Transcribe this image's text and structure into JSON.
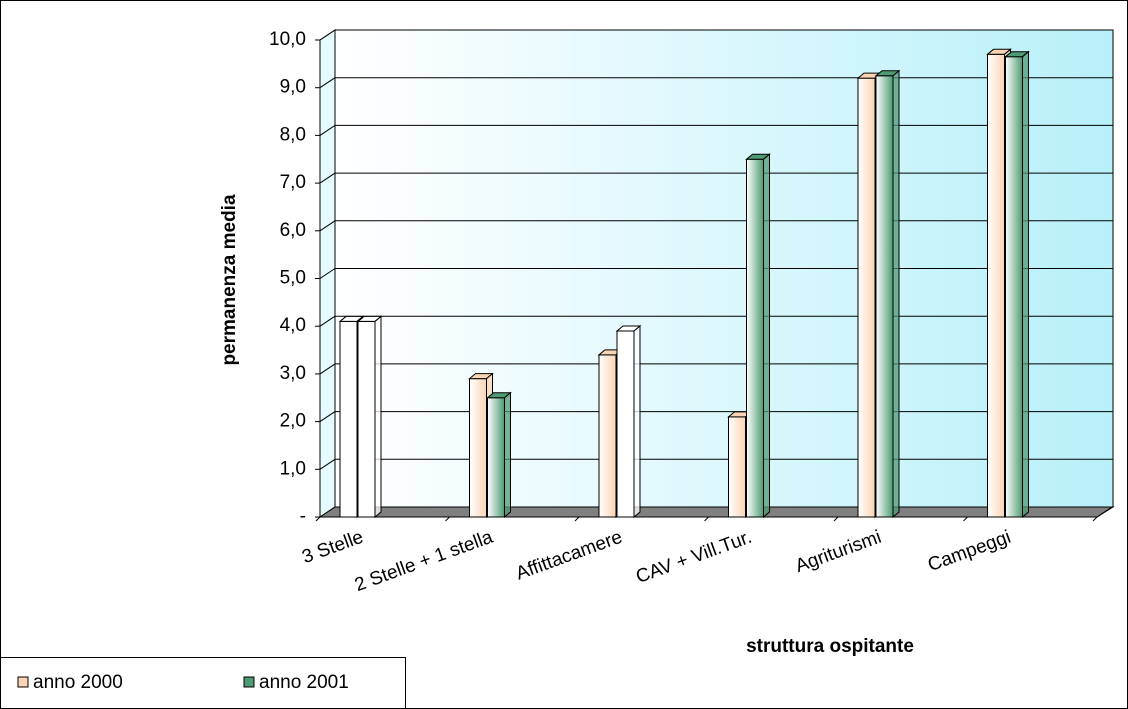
{
  "chart_data": {
    "type": "bar3d",
    "categories": [
      "3 Stelle",
      "2 Stelle  + 1 stella",
      "Affittacamere",
      "CAV + Vill.Tur.",
      "Agriturismi",
      "Campeggi"
    ],
    "series": [
      {
        "name": "anno 2000",
        "color": "#fbd4b4",
        "colors": [
          "#ffffff",
          "#fbd4b4",
          "#fbd4b4",
          "#fbd4b4",
          "#fbd4b4",
          "#fbd4b4"
        ],
        "values": [
          4.1,
          2.9,
          3.4,
          2.1,
          9.2,
          9.7
        ]
      },
      {
        "name": "anno 2001",
        "color": "#4e9a73",
        "colors": [
          "#ffffff",
          "#4e9a73",
          "#ffffff",
          "#4e9a73",
          "#4e9a73",
          "#4e9a73"
        ],
        "values": [
          4.1,
          2.5,
          3.9,
          7.5,
          9.25,
          9.65
        ]
      }
    ],
    "y_label": "permanenza media",
    "x_label": "struttura ospitante",
    "ylim": [
      0,
      10
    ],
    "yticks": [
      {
        "value": 0,
        "label": "-"
      },
      {
        "value": 1,
        "label": "1,0"
      },
      {
        "value": 2,
        "label": "2,0"
      },
      {
        "value": 3,
        "label": "3,0"
      },
      {
        "value": 4,
        "label": "4,0"
      },
      {
        "value": 5,
        "label": "5,0"
      },
      {
        "value": 6,
        "label": "6,0"
      },
      {
        "value": 7,
        "label": "7,0"
      },
      {
        "value": 8,
        "label": "8,0"
      },
      {
        "value": 9,
        "label": "9,0"
      },
      {
        "value": 10,
        "label": "10,0"
      }
    ],
    "grid": true,
    "legend": "bottom-left"
  }
}
